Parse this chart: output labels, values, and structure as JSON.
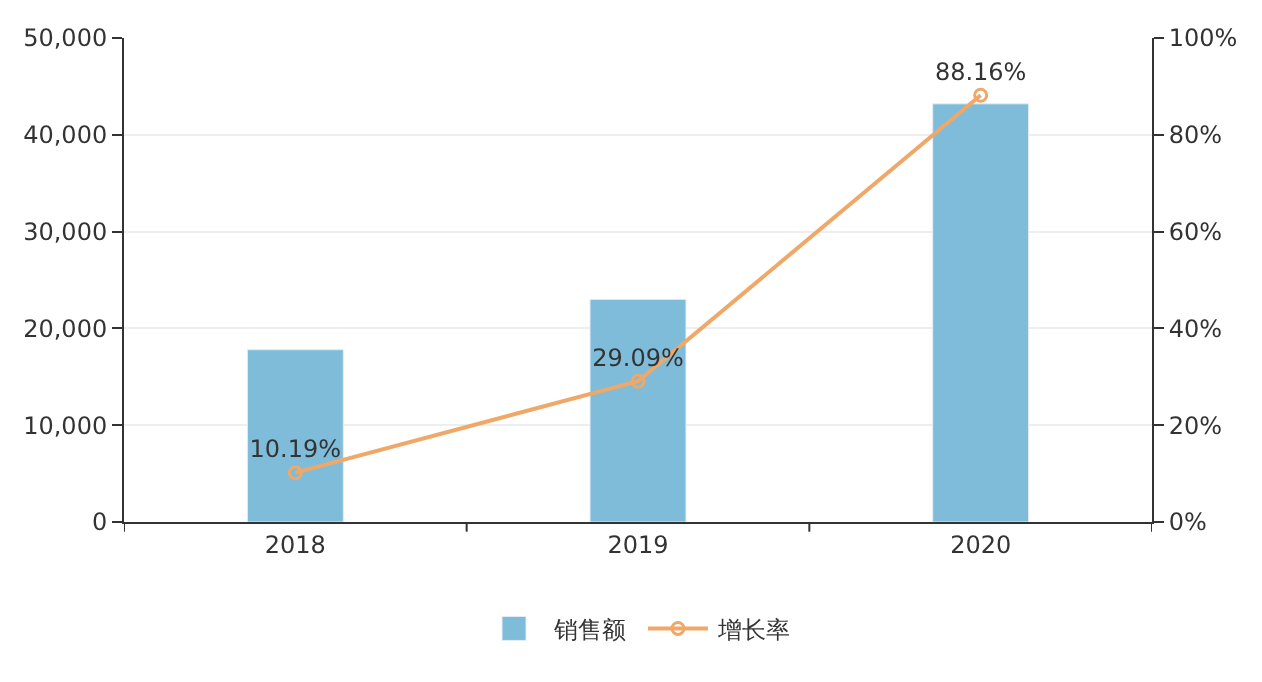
{
  "chart_data": {
    "type": "bar",
    "categories": [
      "2018",
      "2019",
      "2020"
    ],
    "series": [
      {
        "name": "销售额",
        "color": "#7ebcd9",
        "values": [
          17800,
          23000,
          43200
        ]
      },
      {
        "name": "增长率",
        "type": "line",
        "axis": "y2",
        "color": "#f0a868",
        "values": [
          10.19,
          29.09,
          88.16
        ],
        "value_labels": [
          "10.19%",
          "29.09%",
          "88.16%"
        ],
        "marker": "circle"
      }
    ],
    "ylim": [
      0,
      50000
    ],
    "yticks": [
      {
        "value": 0,
        "label": "0"
      },
      {
        "value": 10000,
        "label": "10,000"
      },
      {
        "value": 20000,
        "label": "20,000"
      },
      {
        "value": 30000,
        "label": "30,000"
      },
      {
        "value": 40000,
        "label": "40,000"
      },
      {
        "value": 50000,
        "label": "50,000"
      }
    ],
    "y2lim": [
      0,
      100
    ],
    "y2ticks": [
      {
        "value": 0,
        "label": "0%"
      },
      {
        "value": 20,
        "label": "20%"
      },
      {
        "value": 40,
        "label": "40%"
      },
      {
        "value": 60,
        "label": "60%"
      },
      {
        "value": 80,
        "label": "80%"
      },
      {
        "value": 100,
        "label": "100%"
      }
    ],
    "grid": "y",
    "legend": "bottom"
  }
}
